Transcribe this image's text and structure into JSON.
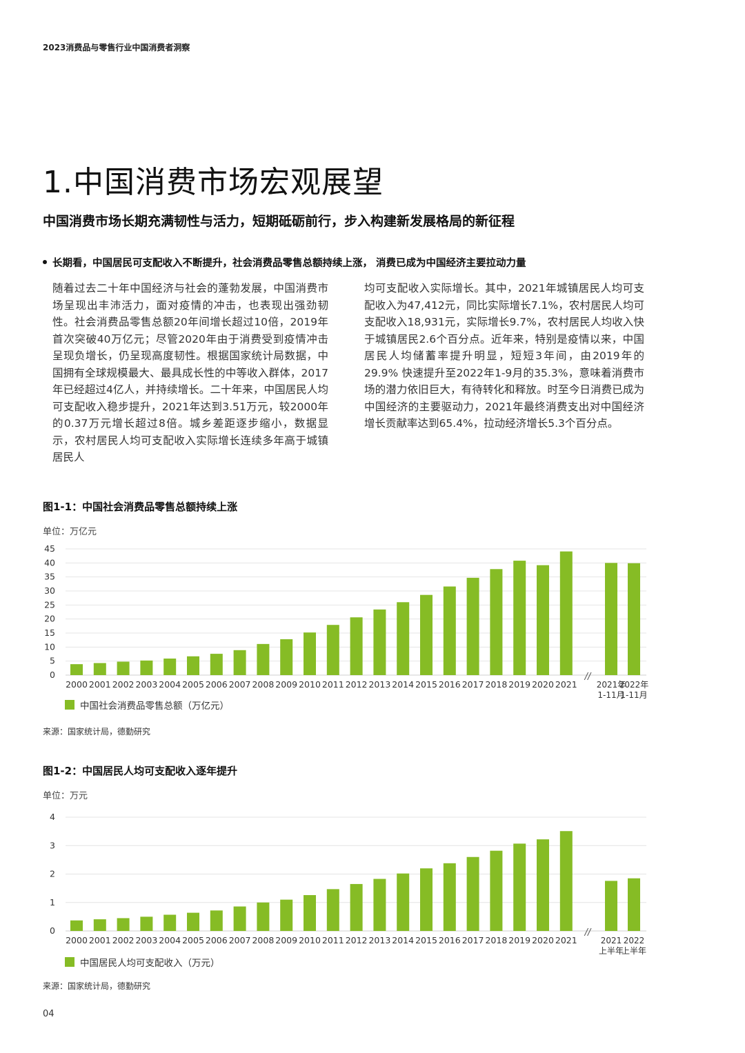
{
  "header": {
    "text": "2023消费品与零售行业中国消费者洞察"
  },
  "section_title": "1.中国消费市场宏观展望",
  "subtitle": "中国消费市场长期充满韧性与活力，短期砥砺前行，步入构建新发展格局的新征程",
  "bullet": "长期看，中国居民可支配收入不断提升，社会消费品零售总额持续上涨， 消费已成为中国经济主要拉动力量",
  "body_left": "随着过去二十年中国经济与社会的蓬勃发展，中国消费市场呈现出丰沛活力，面对疫情的冲击，也表现出强劲韧性。社会消费品零售总额20年间增长超过10倍，2019年首次突破40万亿元；尽管2020年由于消费受到疫情冲击呈现负增长，仍呈现高度韧性。根据国家统计局数据，中国拥有全球规模最大、最具成长性的中等收入群体，2017年已经超过4亿人，并持续增长。二十年来，中国居民人均可支配收入稳步提升，2021年达到3.51万元，较2000年的0.37万元增长超过8倍。城乡差距逐步缩小，数据显示，农村居民人均可支配收入实际增长连续多年高于城镇居民人",
  "body_right": "均可支配收入实际增长。其中，2021年城镇居民人均可支配收入为47,412元，同比实际增长7.1%，农村居民人均可支配收入18,931元，实际增长9.7%，农村居民人均收入快于城镇居民2.6个百分点。近年来，特别是疫情以来，中国居民人均储蓄率提升明显，短短3年间，由2019年的29.9% 快速提升至2022年1-9月的35.3%，意味着消费市场的潜力依旧巨大，有待转化和释放。时至今日消费已成为中国经济的主要驱动力，2021年最终消费支出对中国经济增长贡献率达到65.4%，拉动经济增长5.3个百分点。",
  "page_number": "04",
  "accent_color": "#86bc25",
  "chart_data": [
    {
      "type": "bar",
      "title": "图1-1：中国社会消费品零售总额持续上涨",
      "unit": "单位：万亿元",
      "categories": [
        "2000",
        "2001",
        "2002",
        "2003",
        "2004",
        "2005",
        "2006",
        "2007",
        "2008",
        "2009",
        "2010",
        "2011",
        "2012",
        "2013",
        "2014",
        "2015",
        "2016",
        "2017",
        "2018",
        "2019",
        "2020",
        "2021"
      ],
      "extra_categories": [
        [
          "2021年",
          "1-11月"
        ],
        [
          "2022年",
          "1-11月"
        ]
      ],
      "series": [
        {
          "name": "中国社会消费品零售总额（万亿元）",
          "values": [
            3.9,
            4.3,
            4.8,
            5.2,
            5.9,
            6.7,
            7.6,
            8.9,
            11.1,
            12.8,
            15.2,
            17.9,
            20.6,
            23.4,
            26.0,
            28.6,
            31.6,
            34.7,
            37.8,
            40.8,
            39.2,
            44.1
          ],
          "extra_values": [
            40.0,
            39.9
          ]
        }
      ],
      "ylim": [
        0,
        45
      ],
      "yticks": [
        0,
        5,
        10,
        15,
        20,
        25,
        30,
        35,
        40,
        45
      ],
      "grid": true,
      "break_marker": "//",
      "legend": "bottom-left",
      "source": "来源：国家统计局，德勤研究"
    },
    {
      "type": "bar",
      "title": "图1-2：中国居民人均可支配收入逐年提升",
      "unit": "单位：万元",
      "categories": [
        "2000",
        "2001",
        "2002",
        "2003",
        "2004",
        "2005",
        "2006",
        "2007",
        "2008",
        "2009",
        "2010",
        "2011",
        "2012",
        "2013",
        "2014",
        "2015",
        "2016",
        "2017",
        "2018",
        "2019",
        "2020",
        "2021"
      ],
      "extra_categories": [
        [
          "2021",
          "上半年"
        ],
        [
          "2022",
          "上半年"
        ]
      ],
      "series": [
        {
          "name": "中国居民人均可支配收入（万元）",
          "values": [
            0.37,
            0.41,
            0.45,
            0.5,
            0.57,
            0.64,
            0.72,
            0.86,
            1.0,
            1.1,
            1.26,
            1.47,
            1.65,
            1.83,
            2.02,
            2.2,
            2.38,
            2.6,
            2.82,
            3.07,
            3.22,
            3.51
          ],
          "extra_values": [
            1.76,
            1.85
          ]
        }
      ],
      "ylim": [
        0,
        4
      ],
      "yticks": [
        0,
        1,
        2,
        3,
        4
      ],
      "grid": true,
      "break_marker": "//",
      "legend": "bottom-left",
      "source": "来源：国家统计局，德勤研究"
    }
  ]
}
